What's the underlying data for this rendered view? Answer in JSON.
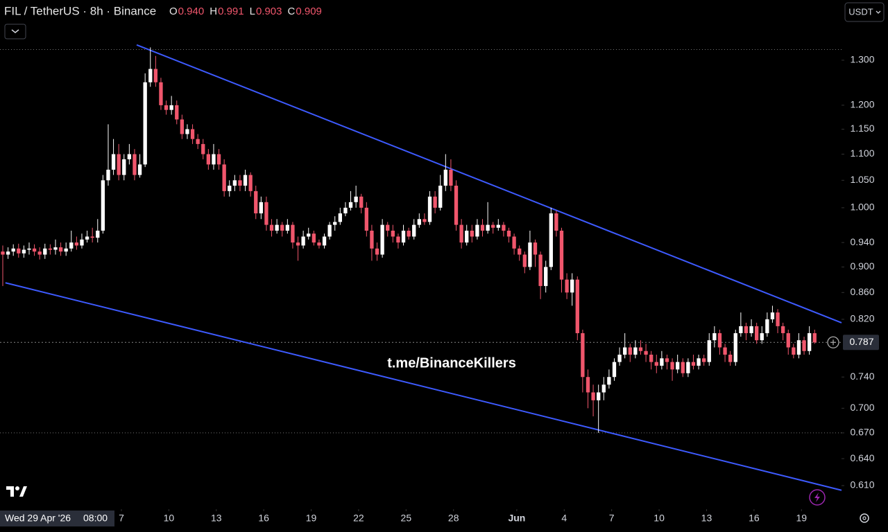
{
  "chart_data": {
    "type": "candlestick",
    "title": "FIL / TetherUS · 8h · Binance",
    "legend_fields": [
      {
        "key": "O",
        "value": "0.940"
      },
      {
        "key": "H",
        "value": "0.991"
      },
      {
        "key": "L",
        "value": "0.903"
      },
      {
        "key": "C",
        "value": "0.909"
      }
    ],
    "currency": "USDT",
    "watermark": "t.me/BinanceKillers",
    "crosshair_date": "Wed 29 Apr '26",
    "crosshair_time": "08:00",
    "up_color": "#ffffff",
    "down_color": "#f0566c",
    "trendline_color": "#3d5afe",
    "log_scale": true,
    "ylim": [
      0.585,
      1.447
    ],
    "xlim": [
      -0.526,
      159.1
    ],
    "yticks": [
      {
        "value": 1.3,
        "label": "1.300"
      },
      {
        "value": 1.2,
        "label": "1.200"
      },
      {
        "value": 1.15,
        "label": "1.150"
      },
      {
        "value": 1.1,
        "label": "1.100"
      },
      {
        "value": 1.05,
        "label": "1.050"
      },
      {
        "value": 1.0,
        "label": "1.000"
      },
      {
        "value": 0.94,
        "label": "0.940"
      },
      {
        "value": 0.9,
        "label": "0.900"
      },
      {
        "value": 0.86,
        "label": "0.860"
      },
      {
        "value": 0.82,
        "label": "0.820"
      },
      {
        "value": 0.74,
        "label": "0.740"
      },
      {
        "value": 0.7,
        "label": "0.700"
      },
      {
        "value": 0.67,
        "label": "0.670"
      },
      {
        "value": 0.64,
        "label": "0.640"
      },
      {
        "value": 0.61,
        "label": "0.610"
      }
    ],
    "xticks": [
      {
        "value": 22.5,
        "label": "7"
      },
      {
        "value": 31.5,
        "label": "10"
      },
      {
        "value": 40.5,
        "label": "13"
      },
      {
        "value": 49.5,
        "label": "16"
      },
      {
        "value": 58.5,
        "label": "19"
      },
      {
        "value": 67.5,
        "label": "22"
      },
      {
        "value": 76.5,
        "label": "25"
      },
      {
        "value": 85.5,
        "label": "28"
      },
      {
        "value": 97.5,
        "label": "Jun"
      },
      {
        "value": 106.5,
        "label": "4"
      },
      {
        "value": 115.5,
        "label": "7"
      },
      {
        "value": 124.5,
        "label": "10"
      },
      {
        "value": 133.5,
        "label": "13"
      },
      {
        "value": 142.5,
        "label": "16"
      },
      {
        "value": 151.5,
        "label": "19"
      }
    ],
    "hlines": [
      1.325,
      0.67
    ],
    "last_price": {
      "value": 0.787,
      "label": "0.787"
    },
    "trendlines": [
      {
        "x": [
          25.4,
          159.1
        ],
        "y": [
          1.336,
          0.815
        ]
      },
      {
        "x": [
          0.5,
          159.1
        ],
        "y": [
          0.875,
          0.605
        ]
      }
    ],
    "ohlc": [
      [
        0.925,
        0.935,
        0.87,
        0.92
      ],
      [
        0.92,
        0.932,
        0.913,
        0.925
      ],
      [
        0.925,
        0.937,
        0.918,
        0.93
      ],
      [
        0.93,
        0.938,
        0.915,
        0.922
      ],
      [
        0.922,
        0.935,
        0.915,
        0.928
      ],
      [
        0.928,
        0.94,
        0.92,
        0.93
      ],
      [
        0.93,
        0.937,
        0.918,
        0.925
      ],
      [
        0.925,
        0.932,
        0.912,
        0.92
      ],
      [
        0.92,
        0.938,
        0.913,
        0.93
      ],
      [
        0.93,
        0.937,
        0.92,
        0.928
      ],
      [
        0.928,
        0.945,
        0.92,
        0.932
      ],
      [
        0.932,
        0.94,
        0.918,
        0.925
      ],
      [
        0.925,
        0.94,
        0.918,
        0.93
      ],
      [
        0.93,
        0.96,
        0.925,
        0.94
      ],
      [
        0.94,
        0.95,
        0.928,
        0.935
      ],
      [
        0.935,
        0.955,
        0.93,
        0.945
      ],
      [
        0.945,
        0.96,
        0.94,
        0.95
      ],
      [
        0.95,
        0.965,
        0.94,
        0.948
      ],
      [
        0.948,
        0.98,
        0.94,
        0.96
      ],
      [
        0.96,
        1.06,
        0.955,
        1.05
      ],
      [
        1.05,
        1.16,
        1.04,
        1.07
      ],
      [
        1.07,
        1.13,
        1.06,
        1.1
      ],
      [
        1.1,
        1.12,
        1.05,
        1.06
      ],
      [
        1.06,
        1.1,
        1.05,
        1.09
      ],
      [
        1.09,
        1.12,
        1.08,
        1.1
      ],
      [
        1.1,
        1.11,
        1.05,
        1.06
      ],
      [
        1.06,
        1.1,
        1.055,
        1.08
      ],
      [
        1.08,
        1.27,
        1.075,
        1.25
      ],
      [
        1.25,
        1.33,
        1.24,
        1.28
      ],
      [
        1.28,
        1.31,
        1.24,
        1.25
      ],
      [
        1.25,
        1.26,
        1.19,
        1.2
      ],
      [
        1.2,
        1.21,
        1.18,
        1.19
      ],
      [
        1.19,
        1.22,
        1.18,
        1.2
      ],
      [
        1.2,
        1.21,
        1.16,
        1.17
      ],
      [
        1.17,
        1.18,
        1.13,
        1.14
      ],
      [
        1.14,
        1.16,
        1.13,
        1.15
      ],
      [
        1.15,
        1.16,
        1.12,
        1.13
      ],
      [
        1.13,
        1.14,
        1.11,
        1.12
      ],
      [
        1.12,
        1.13,
        1.09,
        1.1
      ],
      [
        1.1,
        1.11,
        1.07,
        1.08
      ],
      [
        1.08,
        1.12,
        1.07,
        1.1
      ],
      [
        1.1,
        1.11,
        1.07,
        1.08
      ],
      [
        1.08,
        1.09,
        1.02,
        1.03
      ],
      [
        1.03,
        1.05,
        1.02,
        1.04
      ],
      [
        1.04,
        1.06,
        1.03,
        1.05
      ],
      [
        1.05,
        1.06,
        1.03,
        1.04
      ],
      [
        1.04,
        1.07,
        1.03,
        1.06
      ],
      [
        1.06,
        1.065,
        1.02,
        1.03
      ],
      [
        1.03,
        1.04,
        0.98,
        0.99
      ],
      [
        0.99,
        1.02,
        0.98,
        1.01
      ],
      [
        1.01,
        1.02,
        0.96,
        0.97
      ],
      [
        0.97,
        0.98,
        0.95,
        0.96
      ],
      [
        0.96,
        0.98,
        0.955,
        0.97
      ],
      [
        0.97,
        0.975,
        0.95,
        0.96
      ],
      [
        0.96,
        0.98,
        0.955,
        0.97
      ],
      [
        0.97,
        0.975,
        0.93,
        0.94
      ],
      [
        0.94,
        0.95,
        0.91,
        0.935
      ],
      [
        0.935,
        0.96,
        0.93,
        0.95
      ],
      [
        0.95,
        0.965,
        0.945,
        0.955
      ],
      [
        0.955,
        0.96,
        0.935,
        0.94
      ],
      [
        0.94,
        0.945,
        0.93,
        0.935
      ],
      [
        0.935,
        0.955,
        0.93,
        0.95
      ],
      [
        0.95,
        0.975,
        0.945,
        0.97
      ],
      [
        0.97,
        0.985,
        0.96,
        0.975
      ],
      [
        0.975,
        1.0,
        0.97,
        0.99
      ],
      [
        0.99,
        1.01,
        0.985,
        1.0
      ],
      [
        1.0,
        1.03,
        0.995,
        1.01
      ],
      [
        1.01,
        1.04,
        1.0,
        1.02
      ],
      [
        1.02,
        1.025,
        0.99,
        1.0
      ],
      [
        1.0,
        1.01,
        0.95,
        0.96
      ],
      [
        0.96,
        0.97,
        0.91,
        0.93
      ],
      [
        0.93,
        0.94,
        0.91,
        0.92
      ],
      [
        0.92,
        0.98,
        0.915,
        0.97
      ],
      [
        0.97,
        0.975,
        0.95,
        0.96
      ],
      [
        0.96,
        0.97,
        0.94,
        0.95
      ],
      [
        0.95,
        0.955,
        0.93,
        0.94
      ],
      [
        0.94,
        0.97,
        0.935,
        0.96
      ],
      [
        0.96,
        0.965,
        0.945,
        0.95
      ],
      [
        0.95,
        0.98,
        0.945,
        0.97
      ],
      [
        0.97,
        0.99,
        0.965,
        0.98
      ],
      [
        0.98,
        0.99,
        0.97,
        0.975
      ],
      [
        0.975,
        1.03,
        0.97,
        1.02
      ],
      [
        1.02,
        1.03,
        0.99,
        1.0
      ],
      [
        1.0,
        1.06,
        0.995,
        1.04
      ],
      [
        1.04,
        1.1,
        1.03,
        1.07
      ],
      [
        1.07,
        1.09,
        1.03,
        1.04
      ],
      [
        1.04,
        1.05,
        0.96,
        0.97
      ],
      [
        0.97,
        0.98,
        0.93,
        0.94
      ],
      [
        0.94,
        0.97,
        0.935,
        0.96
      ],
      [
        0.96,
        0.97,
        0.94,
        0.95
      ],
      [
        0.95,
        0.98,
        0.945,
        0.97
      ],
      [
        0.97,
        0.98,
        0.95,
        0.96
      ],
      [
        0.96,
        1.01,
        0.955,
        0.97
      ],
      [
        0.97,
        0.975,
        0.955,
        0.965
      ],
      [
        0.965,
        0.98,
        0.96,
        0.97
      ],
      [
        0.97,
        0.975,
        0.95,
        0.96
      ],
      [
        0.96,
        0.965,
        0.94,
        0.95
      ],
      [
        0.95,
        0.955,
        0.92,
        0.93
      ],
      [
        0.93,
        0.935,
        0.91,
        0.92
      ],
      [
        0.92,
        0.925,
        0.89,
        0.9
      ],
      [
        0.9,
        0.96,
        0.895,
        0.94
      ],
      [
        0.94,
        0.945,
        0.9,
        0.92
      ],
      [
        0.92,
        0.925,
        0.85,
        0.87
      ],
      [
        0.87,
        0.91,
        0.86,
        0.9
      ],
      [
        0.9,
        1.0,
        0.895,
        0.99
      ],
      [
        0.99,
        0.995,
        0.95,
        0.96
      ],
      [
        0.96,
        0.965,
        0.86,
        0.88
      ],
      [
        0.88,
        0.89,
        0.85,
        0.86
      ],
      [
        0.86,
        0.89,
        0.84,
        0.88
      ],
      [
        0.88,
        0.885,
        0.79,
        0.8
      ],
      [
        0.8,
        0.805,
        0.72,
        0.74
      ],
      [
        0.74,
        0.75,
        0.7,
        0.72
      ],
      [
        0.72,
        0.73,
        0.69,
        0.71
      ],
      [
        0.71,
        0.73,
        0.67,
        0.72
      ],
      [
        0.72,
        0.74,
        0.71,
        0.73
      ],
      [
        0.73,
        0.75,
        0.725,
        0.74
      ],
      [
        0.74,
        0.765,
        0.735,
        0.76
      ],
      [
        0.76,
        0.78,
        0.755,
        0.77
      ],
      [
        0.77,
        0.8,
        0.765,
        0.78
      ],
      [
        0.78,
        0.785,
        0.76,
        0.77
      ],
      [
        0.77,
        0.79,
        0.765,
        0.78
      ],
      [
        0.78,
        0.79,
        0.77,
        0.775
      ],
      [
        0.775,
        0.785,
        0.76,
        0.77
      ],
      [
        0.77,
        0.775,
        0.75,
        0.76
      ],
      [
        0.76,
        0.77,
        0.745,
        0.755
      ],
      [
        0.755,
        0.775,
        0.75,
        0.765
      ],
      [
        0.765,
        0.77,
        0.75,
        0.76
      ],
      [
        0.76,
        0.765,
        0.735,
        0.75
      ],
      [
        0.75,
        0.77,
        0.745,
        0.76
      ],
      [
        0.76,
        0.765,
        0.74,
        0.745
      ],
      [
        0.745,
        0.765,
        0.74,
        0.76
      ],
      [
        0.76,
        0.77,
        0.75,
        0.755
      ],
      [
        0.755,
        0.77,
        0.75,
        0.765
      ],
      [
        0.765,
        0.77,
        0.755,
        0.76
      ],
      [
        0.76,
        0.8,
        0.755,
        0.79
      ],
      [
        0.79,
        0.81,
        0.78,
        0.8
      ],
      [
        0.8,
        0.805,
        0.77,
        0.78
      ],
      [
        0.78,
        0.785,
        0.76,
        0.77
      ],
      [
        0.77,
        0.775,
        0.755,
        0.76
      ],
      [
        0.76,
        0.805,
        0.755,
        0.8
      ],
      [
        0.8,
        0.83,
        0.795,
        0.81
      ],
      [
        0.81,
        0.815,
        0.79,
        0.8
      ],
      [
        0.8,
        0.82,
        0.795,
        0.81
      ],
      [
        0.81,
        0.815,
        0.785,
        0.79
      ],
      [
        0.79,
        0.81,
        0.785,
        0.8
      ],
      [
        0.8,
        0.83,
        0.795,
        0.82
      ],
      [
        0.82,
        0.84,
        0.815,
        0.83
      ],
      [
        0.83,
        0.835,
        0.8,
        0.81
      ],
      [
        0.81,
        0.815,
        0.79,
        0.8
      ],
      [
        0.8,
        0.805,
        0.77,
        0.78
      ],
      [
        0.78,
        0.785,
        0.765,
        0.77
      ],
      [
        0.77,
        0.8,
        0.765,
        0.79
      ],
      [
        0.79,
        0.795,
        0.77,
        0.775
      ],
      [
        0.775,
        0.81,
        0.77,
        0.8
      ],
      [
        0.8,
        0.805,
        0.785,
        0.787
      ]
    ]
  }
}
